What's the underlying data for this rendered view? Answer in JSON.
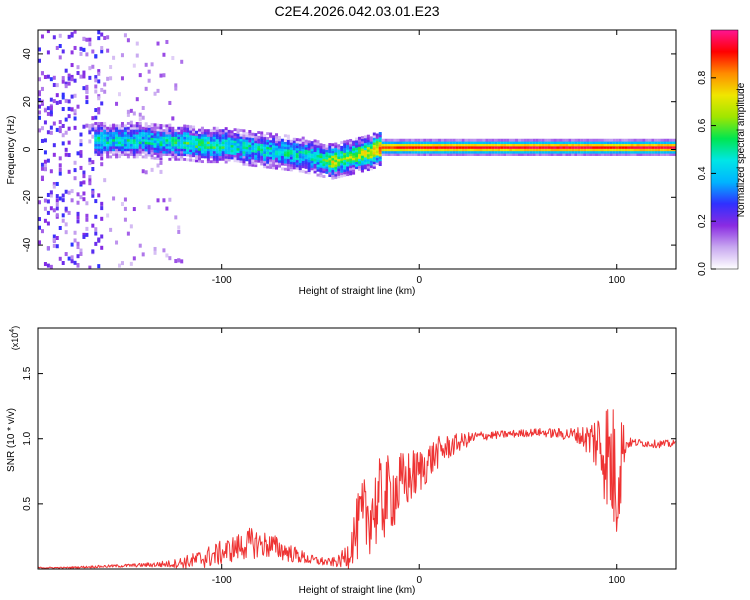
{
  "title": "C2E4.2026.042.03.01.E23",
  "chart_data": [
    {
      "type": "heatmap",
      "title": "C2E4.2026.042.03.01.E23",
      "xlabel": "Height of straight line (km)",
      "ylabel": "Frequency (Hz)",
      "xlim": [
        -193,
        130
      ],
      "ylim": [
        -50,
        50
      ],
      "xticks": [
        -100,
        0,
        100
      ],
      "xtick_labels": [
        "-100",
        "0",
        "100"
      ],
      "yticks": [
        -40,
        -20,
        0,
        20,
        40
      ],
      "ytick_labels": [
        "-40",
        "-20",
        "0",
        "20",
        "40"
      ],
      "colorbar": {
        "label": "Normalized spectral amplitude",
        "range": [
          0.0,
          1.0
        ],
        "ticks": [
          0.0,
          0.2,
          0.4,
          0.6,
          0.8
        ],
        "tick_labels": [
          "0.0",
          "0.2",
          "0.4",
          "0.6",
          "0.8"
        ],
        "colors": [
          "#ffffff",
          "#c8a8f0",
          "#8a2be2",
          "#3030ff",
          "#00b4ff",
          "#00e6e6",
          "#00e650",
          "#a0e600",
          "#f0e600",
          "#ff8c00",
          "#ff0000",
          "#ff1493"
        ]
      },
      "ridge": {
        "x": [
          -160,
          -150,
          -140,
          -130,
          -120,
          -110,
          -100,
          -90,
          -80,
          -70,
          -60,
          -50,
          -45,
          -40,
          -35,
          -30,
          -25,
          -20,
          -10,
          0,
          10,
          20,
          40,
          60,
          80,
          90,
          100,
          110,
          130
        ],
        "frequency": [
          4,
          4,
          4,
          3,
          3,
          2,
          2,
          1,
          0,
          -1,
          -2,
          -4,
          -5,
          -4,
          -3,
          -2,
          -1,
          1,
          1,
          1,
          1,
          1,
          1,
          1,
          1,
          1,
          1,
          1,
          1
        ],
        "amplitude": [
          0.45,
          0.45,
          0.45,
          0.45,
          0.5,
          0.5,
          0.5,
          0.45,
          0.45,
          0.45,
          0.45,
          0.5,
          0.7,
          0.6,
          0.6,
          0.65,
          0.7,
          0.85,
          0.9,
          0.92,
          0.92,
          0.92,
          0.93,
          0.95,
          0.95,
          0.93,
          0.9,
          0.95,
          0.95
        ]
      }
    },
    {
      "type": "line",
      "xlabel": "Height of straight line (km)",
      "ylabel": "SNR (10 * v/v)",
      "y_multiplier": "(x10",
      "y_multiplier_exp": "4",
      "y_multiplier_close": ")",
      "xlim": [
        -193,
        130
      ],
      "ylim": [
        0,
        1.85
      ],
      "xticks": [
        -100,
        0,
        100
      ],
      "xtick_labels": [
        "-100",
        "0",
        "100"
      ],
      "yticks": [
        0.5,
        1.0,
        1.5
      ],
      "ytick_labels": [
        "0.5",
        "1.0",
        "1.5"
      ],
      "series": [
        {
          "name": "SNR",
          "color": "#ee3333",
          "x": [
            -193,
            -180,
            -160,
            -140,
            -125,
            -115,
            -105,
            -95,
            -85,
            -75,
            -65,
            -55,
            -45,
            -40,
            -36,
            -33,
            -30,
            -27,
            -24,
            -20,
            -15,
            -10,
            -5,
            0,
            5,
            10,
            20,
            30,
            40,
            50,
            60,
            70,
            80,
            85,
            90,
            95,
            97,
            100,
            102,
            104,
            106,
            110,
            120,
            130
          ],
          "mean": [
            0.01,
            0.01,
            0.02,
            0.03,
            0.04,
            0.06,
            0.1,
            0.15,
            0.2,
            0.18,
            0.12,
            0.07,
            0.05,
            0.06,
            0.12,
            0.25,
            0.35,
            0.4,
            0.45,
            0.5,
            0.58,
            0.62,
            0.7,
            0.75,
            0.83,
            0.9,
            0.97,
            1.02,
            1.03,
            1.04,
            1.05,
            1.04,
            1.03,
            1.0,
            0.98,
            0.9,
            0.8,
            0.7,
            0.9,
            0.95,
            0.97,
            0.97,
            0.96,
            0.96
          ],
          "noise": [
            0.005,
            0.005,
            0.01,
            0.015,
            0.03,
            0.06,
            0.09,
            0.1,
            0.12,
            0.1,
            0.07,
            0.04,
            0.03,
            0.05,
            0.12,
            0.2,
            0.3,
            0.32,
            0.32,
            0.35,
            0.3,
            0.28,
            0.22,
            0.18,
            0.15,
            0.12,
            0.07,
            0.04,
            0.03,
            0.03,
            0.03,
            0.04,
            0.06,
            0.12,
            0.25,
            0.45,
            0.5,
            0.55,
            0.45,
            0.12,
            0.04,
            0.03,
            0.03,
            0.03
          ]
        }
      ]
    }
  ]
}
